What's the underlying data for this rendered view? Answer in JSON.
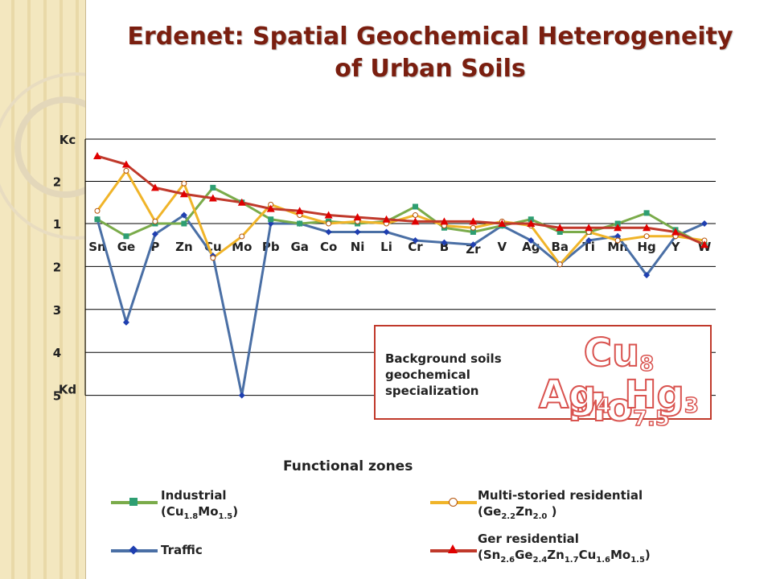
{
  "title": {
    "line1_a": "Erdenet:",
    "line1_b": " Spatial Geochemical Heterogeneity",
    "line2": "of Urban Soils"
  },
  "colors": {
    "industrial": "#7aab4a",
    "industrial_marker": "#2e9e72",
    "multi": "#f0b429",
    "traffic": "#4a6fa5",
    "traffic_marker": "#1f3fb0",
    "ger": "#c0392b",
    "ger_marker": "#e00000",
    "title": "#7a1e0f"
  },
  "background_box": {
    "label": "Background soils geochemical specialization",
    "line1": [
      {
        "el": "Cu",
        "sub": "8"
      },
      {
        "el": "Mo",
        "sub": "7.5"
      }
    ],
    "line2": [
      {
        "el": "Ag",
        "sub": "4"
      },
      {
        "el": "Hg",
        "sub": "3"
      }
    ]
  },
  "legend": {
    "title": "Functional zones",
    "industrial": {
      "name": "Industrial",
      "formula": [
        {
          "t": "(Cu"
        },
        {
          "s": "1.8"
        },
        {
          "t": "Mo"
        },
        {
          "s": "1.5"
        },
        {
          "t": ")"
        }
      ]
    },
    "multi": {
      "name": "Multi-storied residential",
      "formula": [
        {
          "t": "(Ge"
        },
        {
          "s": "2.2"
        },
        {
          "t": "Zn"
        },
        {
          "s": "2.0"
        },
        {
          "t": " )"
        }
      ]
    },
    "traffic": {
      "name": "Traffic",
      "formula": []
    },
    "ger": {
      "name": "Ger residential",
      "formula": [
        {
          "t": "(Sn"
        },
        {
          "s": "2.6"
        },
        {
          "t": "Ge"
        },
        {
          "s": "2.4"
        },
        {
          "t": "Zn"
        },
        {
          "s": "1.7"
        },
        {
          "t": "Cu"
        },
        {
          "s": "1.6"
        },
        {
          "t": "Mo"
        },
        {
          "s": "1.5"
        },
        {
          "t": ")"
        }
      ]
    }
  },
  "chart_data": {
    "type": "line",
    "xlabel": "",
    "ylabel_top": "Kc",
    "ylabel_bottom": "Kd",
    "y_tick_labels": [
      {
        "label": "2",
        "value": 2
      },
      {
        "label": "1",
        "value": 1
      },
      {
        "label": "2",
        "value": -2
      },
      {
        "label": "3",
        "value": -3
      },
      {
        "label": "4",
        "value": -4
      },
      {
        "label": "5",
        "value": -5
      }
    ],
    "grid": true,
    "legend_position": "bottom",
    "categories": [
      "Sn",
      "Ge",
      "P",
      "Zn",
      "Cu",
      "Mo",
      "Pb",
      "Ga",
      "Co",
      "Ni",
      "Li",
      "Cr",
      "B",
      "Zr",
      "V",
      "Ag",
      "Ba",
      "Ti",
      "Mn",
      "Hg",
      "Y",
      "W"
    ],
    "series": [
      {
        "name": "Industrial",
        "values": [
          1.1,
          0.7,
          1.0,
          1.0,
          1.85,
          1.5,
          1.1,
          1.0,
          1.05,
          1.0,
          1.05,
          1.4,
          0.9,
          0.8,
          0.95,
          1.1,
          0.8,
          0.8,
          1.0,
          1.25,
          0.85,
          -1.5
        ]
      },
      {
        "name": "Multi-storied residential",
        "values": [
          1.3,
          2.25,
          1.05,
          1.95,
          -1.8,
          -1.3,
          1.45,
          1.2,
          1.0,
          1.05,
          1.0,
          1.2,
          0.95,
          0.9,
          1.05,
          0.95,
          -1.95,
          0.8,
          0.6,
          0.7,
          0.7,
          0.6
        ]
      },
      {
        "name": "Traffic",
        "values": [
          1.1,
          -3.3,
          0.75,
          1.2,
          -1.75,
          -5.0,
          1.0,
          1.0,
          0.8,
          0.8,
          0.8,
          0.6,
          0.55,
          0.5,
          0.95,
          0.6,
          -1.95,
          0.6,
          0.7,
          -2.2,
          0.7,
          1.0
        ]
      },
      {
        "name": "Ger residential",
        "values": [
          2.6,
          2.4,
          1.85,
          1.7,
          1.6,
          1.5,
          1.35,
          1.3,
          1.2,
          1.15,
          1.1,
          1.05,
          1.05,
          1.05,
          1.0,
          1.0,
          0.9,
          0.9,
          0.9,
          0.9,
          0.8,
          0.5
        ]
      }
    ]
  }
}
